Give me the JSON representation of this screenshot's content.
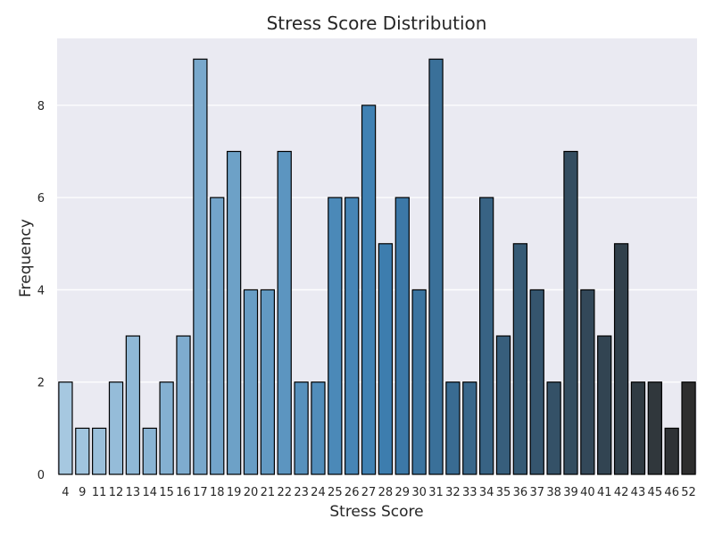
{
  "chart_data": {
    "type": "bar",
    "title": "Stress Score Distribution",
    "xlabel": "Stress Score",
    "ylabel": "Frequency",
    "categories": [
      "4",
      "9",
      "11",
      "12",
      "13",
      "14",
      "15",
      "16",
      "17",
      "18",
      "19",
      "20",
      "21",
      "22",
      "23",
      "24",
      "25",
      "26",
      "27",
      "28",
      "29",
      "30",
      "31",
      "32",
      "33",
      "34",
      "35",
      "36",
      "37",
      "38",
      "39",
      "40",
      "41",
      "42",
      "43",
      "45",
      "46",
      "52"
    ],
    "values": [
      2,
      1,
      1,
      2,
      3,
      1,
      2,
      3,
      9,
      6,
      7,
      4,
      4,
      7,
      2,
      2,
      6,
      6,
      8,
      5,
      6,
      4,
      9,
      2,
      2,
      6,
      3,
      5,
      4,
      2,
      7,
      4,
      3,
      5,
      2,
      2,
      1,
      2
    ],
    "ylim": [
      0,
      9.45
    ],
    "yticks": [
      0,
      2,
      4,
      6,
      8
    ],
    "grid": true,
    "palette": "blue_d",
    "colors": {
      "background": "#eaeaf2",
      "grid": "#ffffff",
      "bar_edge": "#000000",
      "palette_start": "#a6c8e0",
      "palette_mid": "#3d7fb2",
      "palette_end": "#2e2e2e"
    }
  }
}
